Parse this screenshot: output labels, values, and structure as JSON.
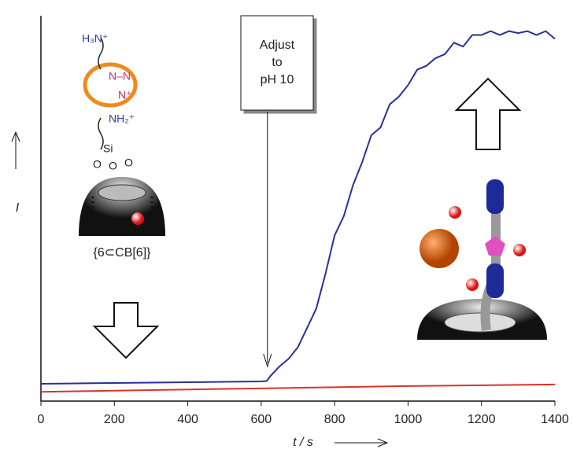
{
  "chart_data": {
    "type": "line",
    "x_label": "t / s",
    "y_label": "I",
    "annotation_box": [
      "Adjust",
      "to",
      "pH 10"
    ],
    "arrow_x": 617,
    "chem_labels": [
      "H₃N⁺",
      "N–N",
      "N⁺",
      "NH₂⁺",
      "Si",
      "O",
      "O",
      "O"
    ],
    "complex_label": "{6⊂CB[6]}",
    "xlim": [
      0,
      1400
    ],
    "xticks": [
      0,
      200,
      400,
      600,
      800,
      1000,
      1200,
      1400
    ],
    "ylim": [
      0,
      100
    ],
    "series": [
      {
        "color": "#2b2f9a",
        "x": [
          0,
          100,
          200,
          300,
          400,
          500,
          600,
          615,
          625,
          650,
          675,
          700,
          725,
          750,
          775,
          800,
          825,
          850,
          875,
          900,
          925,
          950,
          975,
          1000,
          1025,
          1050,
          1075,
          1100,
          1125,
          1150,
          1175,
          1200,
          1225,
          1250,
          1275,
          1300,
          1325,
          1350,
          1375,
          1400
        ],
        "values": [
          4.5,
          4.6,
          4.7,
          4.8,
          4.9,
          5.0,
          5.1,
          5.2,
          6.5,
          9,
          11,
          14,
          19,
          24,
          33,
          43,
          48,
          56,
          62,
          69,
          71,
          77,
          79,
          82,
          86,
          87,
          89,
          90,
          93,
          92,
          95,
          95,
          96,
          95,
          96,
          95.5,
          96,
          95,
          96,
          94
        ]
      },
      {
        "color": "#d9342b",
        "x": [
          0,
          200,
          400,
          600,
          800,
          1000,
          1200,
          1400
        ],
        "values": [
          2.4,
          2.7,
          3.0,
          3.3,
          3.6,
          3.9,
          4.1,
          4.3
        ]
      }
    ]
  }
}
